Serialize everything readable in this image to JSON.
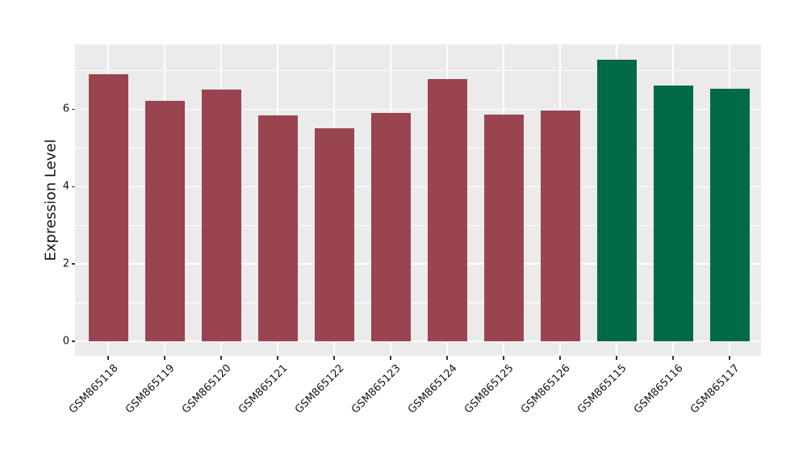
{
  "chart_data": {
    "type": "bar",
    "title": "",
    "xlabel": "",
    "ylabel": "Expression Level",
    "categories": [
      "GSM865118",
      "GSM865119",
      "GSM865120",
      "GSM865121",
      "GSM865122",
      "GSM865123",
      "GSM865124",
      "GSM865125",
      "GSM865126",
      "GSM865115",
      "GSM865116",
      "GSM865117"
    ],
    "values": [
      6.9,
      6.22,
      6.5,
      5.85,
      5.51,
      5.91,
      6.78,
      5.87,
      5.97,
      7.28,
      6.61,
      6.53
    ],
    "bar_colors": [
      "#9a4450",
      "#9a4450",
      "#9a4450",
      "#9a4450",
      "#9a4450",
      "#9a4450",
      "#9a4450",
      "#9a4450",
      "#9a4450",
      "#006948",
      "#006948",
      "#006948"
    ],
    "ytick_labels": [
      "0",
      "2",
      "4",
      "6"
    ],
    "ytick_values": [
      0,
      2,
      4,
      6
    ],
    "ylim": [
      -0.4,
      7.68
    ],
    "gridlines_major": [
      0,
      2,
      4,
      6
    ],
    "gridlines_minor": [
      1,
      3,
      5,
      7
    ],
    "grid": "on",
    "legend": "none",
    "style": {
      "figure_bg": "#ffffff",
      "panel_bg": "#ebebeb",
      "grid_color": "#ffffff",
      "text_color": "#141414",
      "tick_color": "#333333",
      "red_bar_color": "#9a4450",
      "green_bar_color": "#006948"
    }
  }
}
